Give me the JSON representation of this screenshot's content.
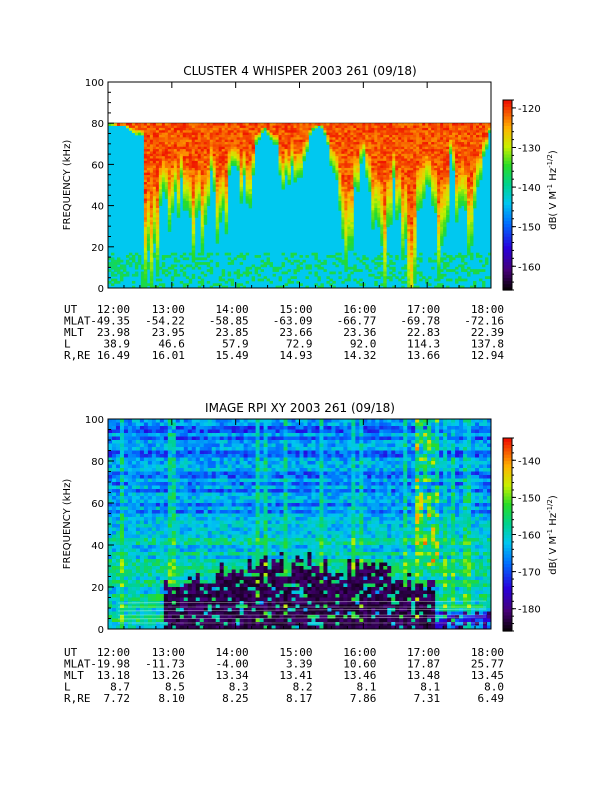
{
  "chart_data": [
    {
      "type": "heatmap",
      "title": "CLUSTER 4 WHISPER 2003 261 (09/18)",
      "ylabel": "FREQUENCY (kHz)",
      "ylim": [
        0,
        100
      ],
      "yticks": [
        "0",
        "20",
        "40",
        "60",
        "80",
        "100"
      ],
      "xlim": [
        "12:00",
        "18:00"
      ],
      "data_ylim": [
        0,
        80
      ],
      "colorbar": {
        "label_main": "dB( V M",
        "label_sup1": "-1",
        "label_mid": " Hz",
        "label_sup2": "-1/2",
        "label_end": ")",
        "range": [
          -166,
          -118
        ],
        "ticks": [
          "-120",
          "-130",
          "-140",
          "-150",
          "-160"
        ],
        "tick_values": [
          -120,
          -130,
          -140,
          -150,
          -160
        ]
      },
      "ephemeris": {
        "rows": [
          {
            "label": "UT",
            "values": [
              "12:00",
              "13:00",
              "14:00",
              "15:00",
              "16:00",
              "17:00",
              "18:00"
            ]
          },
          {
            "label": "MLAT",
            "values": [
              "-49.35",
              "-54.22",
              "-58.85",
              "-63.09",
              "-66.77",
              "-69.78",
              "-72.16"
            ]
          },
          {
            "label": "MLT",
            "values": [
              "23.98",
              "23.95",
              "23.85",
              "23.66",
              "23.36",
              "22.83",
              "22.39"
            ]
          },
          {
            "label": "L",
            "values": [
              "38.9",
              "46.6",
              "57.9",
              "72.9",
              "92.0",
              "114.3",
              "137.8"
            ]
          },
          {
            "label": "R,RE",
            "values": [
              "16.49",
              "16.01",
              "15.49",
              "14.93",
              "14.32",
              "13.66",
              "12.94"
            ]
          }
        ]
      }
    },
    {
      "type": "heatmap",
      "title": "IMAGE RPI XY 2003 261 (09/18)",
      "ylabel": "FREQUENCY (kHz)",
      "ylim": [
        0,
        100
      ],
      "yticks": [
        "0",
        "20",
        "40",
        "60",
        "80",
        "100"
      ],
      "xlim": [
        "12:00",
        "18:00"
      ],
      "colorbar": {
        "label_main": "dB( V M",
        "label_sup1": "-1",
        "label_mid": " Hz",
        "label_sup2": "-1/2",
        "label_end": ")",
        "range": [
          -186,
          -134
        ],
        "ticks": [
          "-140",
          "-150",
          "-160",
          "-170",
          "-180"
        ],
        "tick_values": [
          -140,
          -150,
          -160,
          -170,
          -180
        ]
      },
      "ephemeris": {
        "rows": [
          {
            "label": "UT",
            "values": [
              "12:00",
              "13:00",
              "14:00",
              "15:00",
              "16:00",
              "17:00",
              "18:00"
            ]
          },
          {
            "label": "MLAT",
            "values": [
              "-19.98",
              "-11.73",
              "-4.00",
              "3.39",
              "10.60",
              "17.87",
              "25.77"
            ]
          },
          {
            "label": "MLT",
            "values": [
              "13.18",
              "13.26",
              "13.34",
              "13.41",
              "13.46",
              "13.48",
              "13.45"
            ]
          },
          {
            "label": "L",
            "values": [
              "8.7",
              "8.5",
              "8.3",
              "8.2",
              "8.1",
              "8.1",
              "8.0"
            ]
          },
          {
            "label": "R,RE",
            "values": [
              "7.72",
              "8.10",
              "8.25",
              "8.17",
              "7.86",
              "7.31",
              "6.49"
            ]
          }
        ]
      }
    }
  ]
}
